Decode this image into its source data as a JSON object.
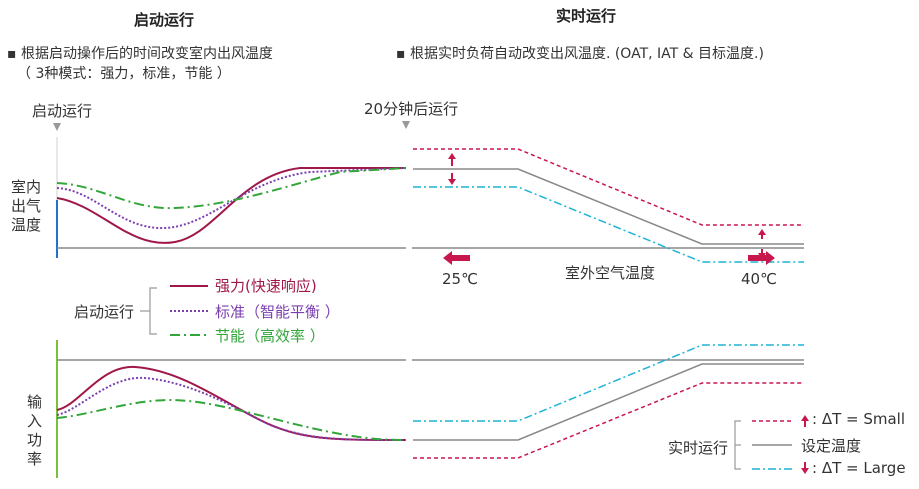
{
  "left": {
    "title": "启动运行",
    "bullet_line1": "▪ 根据启动操作后的时间改变室内出风温度",
    "bullet_line2": "（ 3种模式：强力，标准，节能 ）",
    "marker_label": "启动运行",
    "ylabel_top": [
      "室内",
      "出气",
      "温度"
    ],
    "ylabel_bottom": [
      "输",
      "入",
      "功",
      "率"
    ],
    "legend": {
      "group_label": "启动运行",
      "items": [
        {
          "label": "强力(快速响应)",
          "color": "#a0174a"
        },
        {
          "label": "标准（智能平衡 ）",
          "color": "#7b3fb0"
        },
        {
          "label": "节能（高效率 ）",
          "color": "#33a63a"
        }
      ]
    }
  },
  "right": {
    "title": "实时运行",
    "bullet": "▪ 根据实时负荷自动改变出风温度. (OAT, IAT & 目标温度.)",
    "marker_label": "20分钟后运行",
    "temp_low": "25℃",
    "temp_high": "40℃",
    "xlabel": "室外空气温度",
    "legend": {
      "group_label": "实时运行",
      "items": [
        {
          "label": ": ΔT = Small",
          "color": "#c8174d"
        },
        {
          "label": "设定温度",
          "color": "#888888"
        },
        {
          "label": ": ΔT = Large",
          "color": "#1fb3d6"
        }
      ]
    }
  },
  "colors": {
    "strong": "#a0174a",
    "standard": "#7b3fb0",
    "eco": "#33a63a",
    "small": "#c8174d",
    "setpoint": "#888888",
    "large": "#1fb3d6",
    "axis_blue": "#1f73c8",
    "axis_green": "#7bbf3a",
    "arrow": "#c8174d"
  }
}
